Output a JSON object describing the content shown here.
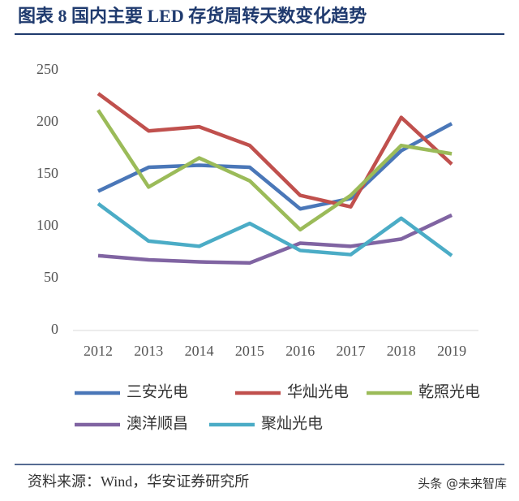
{
  "title": "图表 8 国内主要 LED 存货周转天数变化趋势",
  "source": "资料来源：Wind，华安证券研究所",
  "watermark": "头条 @未来智库",
  "chart_data": {
    "type": "line",
    "categories": [
      "2012",
      "2013",
      "2014",
      "2015",
      "2016",
      "2017",
      "2018",
      "2019"
    ],
    "series": [
      {
        "name": "三安光电",
        "color": "#4a77b8",
        "values": [
          134,
          157,
          159,
          157,
          117,
          127,
          173,
          199
        ]
      },
      {
        "name": "华灿光电",
        "color": "#c0504d",
        "values": [
          228,
          192,
          196,
          178,
          130,
          119,
          205,
          160
        ]
      },
      {
        "name": "乾照光电",
        "color": "#9bbb59",
        "values": [
          212,
          138,
          166,
          144,
          97,
          130,
          178,
          170
        ]
      },
      {
        "name": "澳洋顺昌",
        "color": "#8064a2",
        "values": [
          72,
          68,
          66,
          65,
          84,
          81,
          88,
          111
        ]
      },
      {
        "name": "聚灿光电",
        "color": "#4bacc6",
        "values": [
          122,
          86,
          81,
          103,
          77,
          73,
          108,
          72
        ]
      }
    ],
    "ylim": [
      0,
      250
    ],
    "yticks": [
      0,
      50,
      100,
      150,
      200,
      250
    ],
    "grid": false
  }
}
